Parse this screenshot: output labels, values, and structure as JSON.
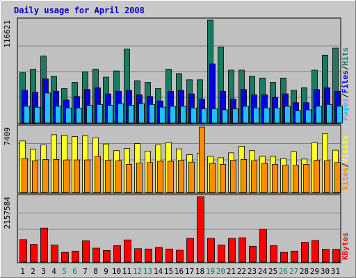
{
  "title": "Daily usage for April 2008",
  "colors": {
    "background": "#c8c8c8",
    "plot_bg": "#c0c0c0",
    "title_text": "#0000c0",
    "hits": "#1a7a62",
    "files": "#0000e0",
    "pages": "#20c0ff",
    "visits": "#ffff20",
    "sites": "#ff8c00",
    "kbytes": "#ff0000",
    "weekend_label": "#1a7a62",
    "weekday_label": "#000000"
  },
  "chart_data": [
    {
      "type": "bar",
      "panel": "top",
      "y_axis_label": "116621",
      "ylim": [
        0,
        116621
      ],
      "right_label": [
        "Pages",
        "Files",
        "Hits"
      ],
      "categories": [
        "1",
        "2",
        "3",
        "4",
        "5",
        "6",
        "7",
        "8",
        "9",
        "10",
        "11",
        "12",
        "13",
        "14",
        "15",
        "16",
        "17",
        "18",
        "19",
        "20",
        "21",
        "22",
        "23",
        "24",
        "25",
        "26",
        "27",
        "28",
        "29",
        "30",
        "31"
      ],
      "weekend_days": [
        "5",
        "6",
        "12",
        "13",
        "19",
        "20",
        "26",
        "27"
      ],
      "series": [
        {
          "name": "Hits",
          "color_key": "hits",
          "values": [
            57000,
            61000,
            76000,
            53000,
            39000,
            46000,
            58000,
            61000,
            52000,
            59000,
            84000,
            48000,
            46000,
            39000,
            61000,
            56000,
            49000,
            49000,
            116621,
            86000,
            60000,
            60000,
            53000,
            51000,
            46000,
            51000,
            37000,
            40000,
            60000,
            77000,
            85000
          ]
        },
        {
          "name": "Files",
          "color_key": "files",
          "values": [
            37000,
            35000,
            50000,
            36000,
            26000,
            30000,
            38000,
            40000,
            33000,
            36000,
            37000,
            32000,
            30000,
            25000,
            36000,
            37000,
            33000,
            27000,
            67000,
            36000,
            27000,
            38000,
            32000,
            32000,
            29000,
            33000,
            23000,
            23000,
            38000,
            40000,
            36000
          ]
        },
        {
          "name": "Pages",
          "color_key": "pages",
          "values": [
            19000,
            18000,
            34000,
            19000,
            17000,
            17000,
            20000,
            21000,
            20000,
            22000,
            20000,
            22000,
            21000,
            18000,
            19000,
            19000,
            17000,
            16000,
            16000,
            15000,
            16000,
            19000,
            17000,
            17000,
            17000,
            19000,
            14000,
            15000,
            19000,
            21000,
            19000
          ]
        }
      ]
    },
    {
      "type": "bar",
      "panel": "middle",
      "y_axis_label": "7409",
      "ylim": [
        0,
        7409
      ],
      "right_label": [
        "Sites",
        "Visits"
      ],
      "categories": [
        "1",
        "2",
        "3",
        "4",
        "5",
        "6",
        "7",
        "8",
        "9",
        "10",
        "11",
        "12",
        "13",
        "14",
        "15",
        "16",
        "17",
        "18",
        "19",
        "20",
        "21",
        "22",
        "23",
        "24",
        "25",
        "26",
        "27",
        "28",
        "29",
        "30",
        "31"
      ],
      "series": [
        {
          "name": "Visits",
          "color_key": "visits",
          "values": [
            5850,
            4900,
            5400,
            6550,
            6500,
            6350,
            6450,
            6200,
            5500,
            4750,
            5000,
            5550,
            4700,
            5400,
            5650,
            4950,
            4300,
            4450,
            4100,
            3950,
            4500,
            5250,
            4750,
            4100,
            4100,
            3850,
            4600,
            3800,
            5650,
            6650,
            4800
          ]
        },
        {
          "name": "Sites",
          "color_key": "sites",
          "values": [
            3850,
            3600,
            3750,
            3750,
            3700,
            3700,
            3700,
            4100,
            3650,
            3600,
            3200,
            3350,
            3400,
            3550,
            3550,
            3650,
            3450,
            7409,
            3300,
            3200,
            3650,
            3750,
            3600,
            3300,
            3200,
            3100,
            3100,
            3200,
            3650,
            3600,
            3400
          ]
        }
      ]
    },
    {
      "type": "bar",
      "panel": "bottom",
      "y_axis_label": "2157584",
      "ylim": [
        0,
        2157584
      ],
      "right_label": [
        "KBytes"
      ],
      "categories": [
        "1",
        "2",
        "3",
        "4",
        "5",
        "6",
        "7",
        "8",
        "9",
        "10",
        "11",
        "12",
        "13",
        "14",
        "15",
        "16",
        "17",
        "18",
        "19",
        "20",
        "21",
        "22",
        "23",
        "24",
        "25",
        "26",
        "27",
        "28",
        "29",
        "30",
        "31"
      ],
      "series": [
        {
          "name": "KBytes",
          "color_key": "kbytes",
          "values": [
            740000,
            580000,
            1120000,
            560000,
            320000,
            360000,
            700000,
            460000,
            380000,
            540000,
            730000,
            440000,
            430000,
            480000,
            430000,
            390000,
            780000,
            2157584,
            780000,
            560000,
            780000,
            800000,
            520000,
            1080000,
            540000,
            320000,
            360000,
            650000,
            710000,
            420000,
            420000
          ]
        }
      ]
    }
  ]
}
